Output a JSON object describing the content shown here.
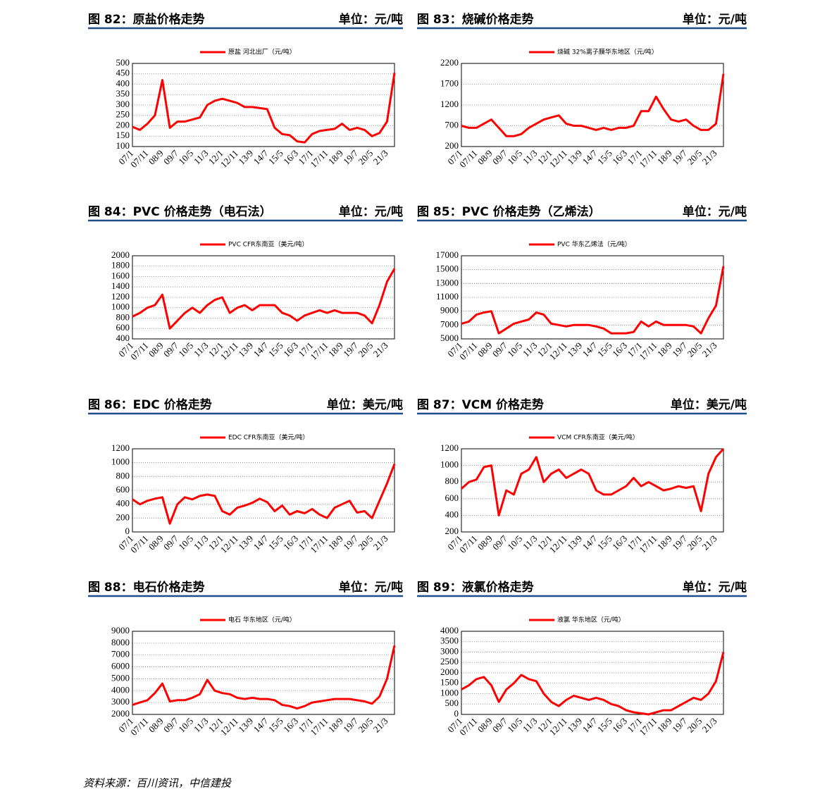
{
  "chart_data": [
    {
      "type": "line",
      "title": "图 82：原盐价格走势",
      "unit": "单位：元/吨",
      "categories": [
        "07/1",
        null,
        "07/11",
        null,
        "08/9",
        null,
        "09/7",
        null,
        "10/5",
        null,
        "11/3",
        null,
        "12/1",
        null,
        "12/11",
        null,
        "13/9",
        null,
        "14/7",
        null,
        "15/5",
        null,
        "16/3",
        null,
        "17/1",
        null,
        "17/11",
        null,
        "18/9",
        null,
        "19/7",
        null,
        "20/5",
        null,
        "21/3",
        null
      ],
      "series": [
        {
          "name": "原盐 河北出厂（元/吨）",
          "color": "#ff0000",
          "values": [
            195,
            180,
            210,
            250,
            420,
            190,
            220,
            220,
            230,
            240,
            300,
            320,
            330,
            320,
            310,
            290,
            290,
            285,
            280,
            190,
            160,
            155,
            125,
            120,
            160,
            175,
            180,
            185,
            210,
            180,
            190,
            180,
            150,
            165,
            220,
            455
          ]
        }
      ],
      "ylim": [
        100,
        500
      ],
      "yticks": [
        100,
        150,
        200,
        250,
        300,
        350,
        400,
        450,
        500
      ],
      "grid": true
    },
    {
      "type": "line",
      "title": "图 83：烧碱价格走势",
      "unit": "单位：元/吨",
      "categories": [
        "07/1",
        null,
        "07/11",
        null,
        "08/9",
        null,
        "09/7",
        null,
        "10/5",
        null,
        "11/3",
        null,
        "12/1",
        null,
        "12/11",
        null,
        "13/9",
        null,
        "14/7",
        null,
        "15/5",
        null,
        "16/3",
        null,
        "17/1",
        null,
        "17/11",
        null,
        "18/9",
        null,
        "19/7",
        null,
        "20/5",
        null,
        "21/3",
        null
      ],
      "series": [
        {
          "name": "烧碱 32%离子膜华东地区（元/吨）",
          "color": "#ff0000",
          "values": [
            700,
            650,
            650,
            750,
            850,
            650,
            450,
            450,
            500,
            650,
            750,
            850,
            900,
            950,
            750,
            700,
            700,
            650,
            600,
            650,
            600,
            650,
            650,
            700,
            1050,
            1050,
            1400,
            1100,
            850,
            800,
            850,
            700,
            600,
            600,
            750,
            1950
          ]
        }
      ],
      "ylim": [
        200,
        2200
      ],
      "yticks": [
        200,
        700,
        1200,
        1700,
        2200
      ],
      "grid": true
    },
    {
      "type": "line",
      "title": "图 84：PVC 价格走势（电石法）",
      "unit": "单位：元/吨",
      "categories": [
        "07/1",
        null,
        "07/11",
        null,
        "08/9",
        null,
        "09/7",
        null,
        "10/5",
        null,
        "11/3",
        null,
        "12/1",
        null,
        "12/11",
        null,
        "13/9",
        null,
        "14/7",
        null,
        "15/5",
        null,
        "16/3",
        null,
        "17/1",
        null,
        "17/11",
        null,
        "18/9",
        null,
        "19/7",
        null,
        "20/5",
        null,
        "21/3",
        null
      ],
      "series": [
        {
          "name": "PVC CFR东南亚（美元/吨）",
          "color": "#ff0000",
          "values": [
            830,
            900,
            1000,
            1050,
            1250,
            600,
            750,
            900,
            1000,
            900,
            1050,
            1150,
            1200,
            900,
            1000,
            1050,
            950,
            1050,
            1050,
            1050,
            900,
            850,
            750,
            850,
            900,
            950,
            900,
            950,
            900,
            900,
            900,
            850,
            700,
            1050,
            1500,
            1750
          ]
        }
      ],
      "ylim": [
        400,
        2000
      ],
      "yticks": [
        400,
        600,
        800,
        1000,
        1200,
        1400,
        1600,
        1800,
        2000
      ],
      "grid": true
    },
    {
      "type": "line",
      "title": "图 85：PVC 价格走势（乙烯法）",
      "unit": "单位：元/吨",
      "categories": [
        "07/1",
        null,
        "07/11",
        null,
        "08/9",
        null,
        "09/7",
        null,
        "10/5",
        null,
        "11/3",
        null,
        "12/1",
        null,
        "12/11",
        null,
        "13/9",
        null,
        "14/7",
        null,
        "15/5",
        null,
        "16/3",
        null,
        "17/1",
        null,
        "17/11",
        null,
        "18/9",
        null,
        "19/7",
        null,
        "20/5",
        null,
        "21/3",
        null
      ],
      "series": [
        {
          "name": "PVC 华东乙烯法（元/吨）",
          "color": "#ff0000",
          "values": [
            7200,
            7500,
            8500,
            8800,
            9000,
            5800,
            6500,
            7200,
            7500,
            7800,
            8800,
            8500,
            7200,
            7000,
            6800,
            7000,
            7000,
            7000,
            6800,
            6500,
            5800,
            5800,
            5800,
            6000,
            7500,
            6800,
            7500,
            7000,
            7000,
            7000,
            7000,
            6800,
            5800,
            8000,
            9800,
            15500
          ]
        }
      ],
      "ylim": [
        5000,
        17000
      ],
      "yticks": [
        5000,
        7000,
        9000,
        11000,
        13000,
        15000,
        17000
      ],
      "grid": true
    },
    {
      "type": "line",
      "title": "图 86：EDC 价格走势",
      "unit": "单位：美元/吨",
      "categories": [
        "07/1",
        null,
        "07/11",
        null,
        "08/9",
        null,
        "09/7",
        null,
        "10/5",
        null,
        "11/3",
        null,
        "12/1",
        null,
        "12/11",
        null,
        "13/9",
        null,
        "14/7",
        null,
        "15/5",
        null,
        "16/3",
        null,
        "17/1",
        null,
        "17/11",
        null,
        "18/9",
        null,
        "19/7",
        null,
        "20/5",
        null,
        "21/3",
        null
      ],
      "series": [
        {
          "name": "EDC CFR东南亚（美元/吨）",
          "color": "#ff0000",
          "values": [
            470,
            400,
            450,
            480,
            500,
            120,
            400,
            500,
            470,
            520,
            540,
            520,
            300,
            250,
            350,
            380,
            420,
            480,
            430,
            300,
            380,
            250,
            300,
            270,
            330,
            250,
            200,
            350,
            400,
            450,
            280,
            300,
            200,
            450,
            700,
            980
          ]
        }
      ],
      "ylim": [
        0,
        1200
      ],
      "yticks": [
        0,
        200,
        400,
        600,
        800,
        1000,
        1200
      ],
      "grid": true
    },
    {
      "type": "line",
      "title": "图 87：VCM 价格走势",
      "unit": "单位：美元/吨",
      "categories": [
        "07/1",
        null,
        "07/11",
        null,
        "08/9",
        null,
        "09/7",
        null,
        "10/5",
        null,
        "11/3",
        null,
        "12/1",
        null,
        "12/11",
        null,
        "13/9",
        null,
        "14/7",
        null,
        "15/5",
        null,
        "16/3",
        null,
        "17/1",
        null,
        "17/11",
        null,
        "18/9",
        null,
        "19/7",
        null,
        "20/5",
        null,
        "21/3",
        null
      ],
      "series": [
        {
          "name": "VCM CFR东南亚（美元/吨）",
          "color": "#ff0000",
          "values": [
            720,
            800,
            830,
            980,
            1000,
            400,
            700,
            650,
            900,
            950,
            1100,
            800,
            900,
            950,
            850,
            900,
            950,
            900,
            700,
            650,
            650,
            700,
            750,
            850,
            750,
            800,
            750,
            700,
            720,
            750,
            730,
            750,
            450,
            900,
            1100,
            1200
          ]
        }
      ],
      "ylim": [
        200,
        1200
      ],
      "yticks": [
        200,
        400,
        600,
        800,
        1000,
        1200
      ],
      "grid": true
    },
    {
      "type": "line",
      "title": "图 88：电石价格走势",
      "unit": "单位：元/吨",
      "categories": [
        "07/1",
        null,
        "07/11",
        null,
        "08/9",
        null,
        "09/7",
        null,
        "10/5",
        null,
        "11/3",
        null,
        "12/1",
        null,
        "12/11",
        null,
        "13/9",
        null,
        "14/7",
        null,
        "15/5",
        null,
        "16/3",
        null,
        "17/1",
        null,
        "17/11",
        null,
        "18/9",
        null,
        "19/7",
        null,
        "20/5",
        null,
        "21/3",
        null
      ],
      "series": [
        {
          "name": "电石 华东地区（元/吨）",
          "color": "#ff0000",
          "values": [
            2800,
            3000,
            3200,
            3800,
            4600,
            3100,
            3200,
            3200,
            3400,
            3700,
            4900,
            4000,
            3800,
            3700,
            3400,
            3300,
            3400,
            3300,
            3300,
            3200,
            2800,
            2700,
            2500,
            2700,
            3000,
            3100,
            3200,
            3300,
            3300,
            3300,
            3200,
            3100,
            2900,
            3500,
            5000,
            7800
          ]
        }
      ],
      "ylim": [
        2000,
        9000
      ],
      "yticks": [
        2000,
        3000,
        4000,
        5000,
        6000,
        7000,
        8000,
        9000
      ],
      "grid": true
    },
    {
      "type": "line",
      "title": "图 89：液氯价格走势",
      "unit": "单位：元/吨",
      "categories": [
        "07/1",
        null,
        "07/11",
        null,
        "08/9",
        null,
        "09/7",
        null,
        "10/5",
        null,
        "11/3",
        null,
        "12/1",
        null,
        "12/11",
        null,
        "13/9",
        null,
        "14/7",
        null,
        "15/5",
        null,
        "16/3",
        null,
        "17/1",
        null,
        "17/11",
        null,
        "18/9",
        null,
        "19/7",
        null,
        "20/5",
        null,
        "21/3",
        null
      ],
      "series": [
        {
          "name": "液氯 华东地区（元/吨）",
          "color": "#ff0000",
          "values": [
            1200,
            1400,
            1700,
            1800,
            1400,
            600,
            1200,
            1500,
            1900,
            1700,
            1600,
            1000,
            600,
            400,
            700,
            900,
            800,
            700,
            800,
            700,
            500,
            400,
            200,
            100,
            50,
            0,
            100,
            200,
            200,
            400,
            600,
            800,
            700,
            1000,
            1600,
            3000
          ]
        }
      ],
      "ylim": [
        0,
        4000
      ],
      "yticks": [
        0,
        500,
        1000,
        1500,
        2000,
        2500,
        3000,
        3500,
        4000
      ],
      "grid": true
    }
  ],
  "source": "资料来源：百川资讯，中信建投"
}
